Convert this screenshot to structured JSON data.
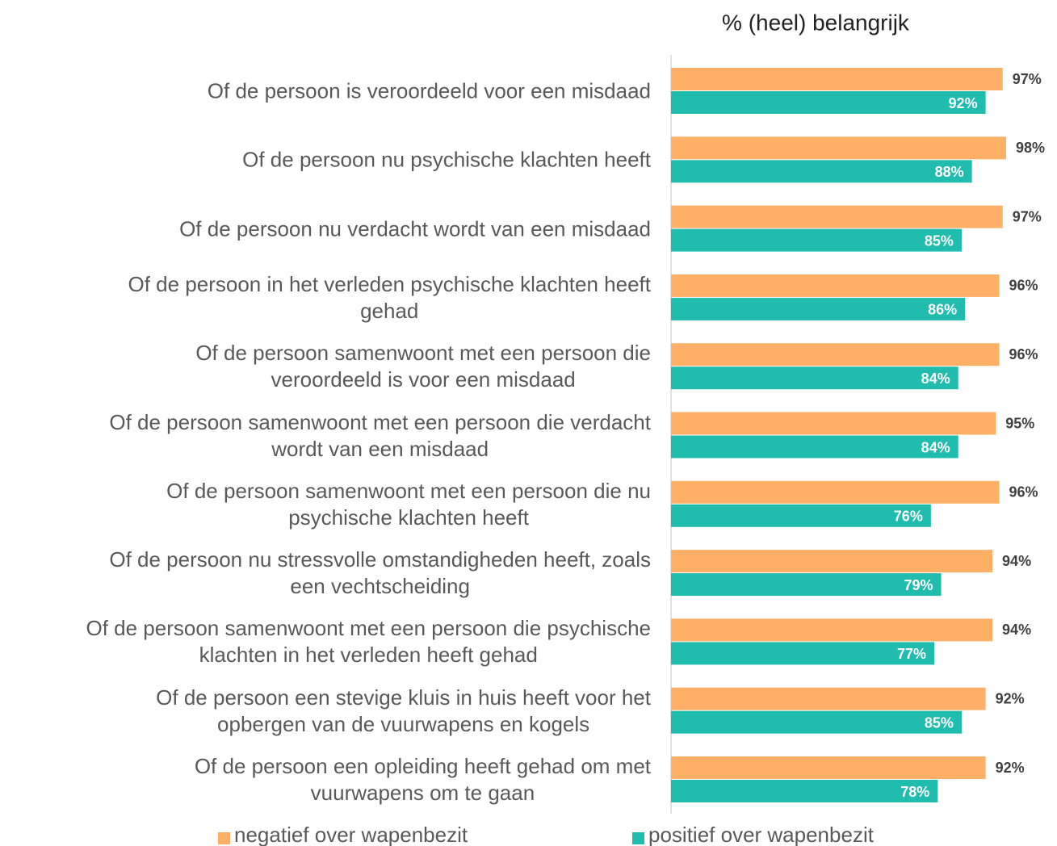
{
  "chart_data": {
    "type": "bar",
    "orientation": "horizontal",
    "title": "% (heel) belangrijk",
    "categories": [
      "Of de persoon is veroordeeld voor een misdaad",
      "Of de persoon nu psychische klachten heeft",
      "Of de persoon nu verdacht wordt van een misdaad",
      "Of de persoon in het verleden psychische klachten heeft\ngehad",
      "Of de persoon samenwoont met een persoon die\nveroordeeld is voor een misdaad",
      "Of de persoon samenwoont met een persoon die verdacht\nwordt van een misdaad",
      "Of de persoon samenwoont met een persoon die nu\npsychische klachten heeft",
      "Of de persoon nu stressvolle omstandigheden heeft, zoals\neen vechtscheiding",
      "Of de persoon samenwoont met een persoon die psychische\nklachten in het verleden heeft gehad",
      "Of de persoon een stevige kluis in huis heeft voor het\nopbergen van de vuurwapens en kogels",
      "Of de persoon een opleiding heeft gehad om met\nvuurwapens om te gaan"
    ],
    "series": [
      {
        "name": "negatief over wapenbezit",
        "color": "#FFB066",
        "values": [
          97,
          98,
          97,
          96,
          96,
          95,
          96,
          94,
          94,
          92,
          92
        ],
        "value_labels": [
          "97%",
          "98%",
          "97%",
          "96%",
          "96%",
          "95%",
          "96%",
          "94%",
          "94%",
          "92%",
          "92%"
        ]
      },
      {
        "name": "positief over wapenbezit",
        "color": "#20BCAE",
        "values": [
          92,
          88,
          85,
          86,
          84,
          84,
          76,
          79,
          77,
          85,
          78
        ],
        "value_labels": [
          "92%",
          "88%",
          "85%",
          "86%",
          "84%",
          "84%",
          "76%",
          "79%",
          "77%",
          "85%",
          "78%"
        ]
      }
    ],
    "xlim": [
      0,
      100
    ]
  }
}
